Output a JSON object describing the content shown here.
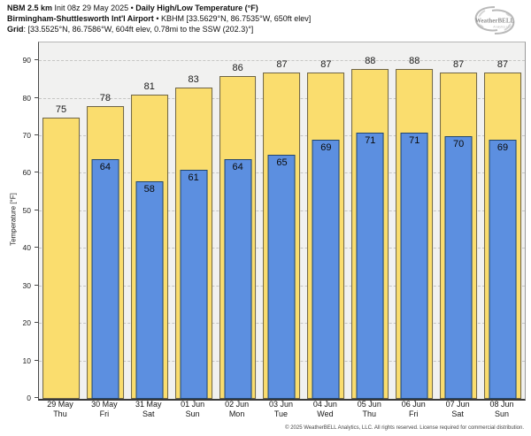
{
  "header": {
    "model": "NBM 2.5 km",
    "init": " Init 08z 29 May 2025 • ",
    "product": "Daily High/Low Temperature (°F)",
    "station": "Birmingham-Shuttlesworth Int'l Airport",
    "station_meta": " • KBHM [33.5629°N, 86.7535°W, 650ft elev]",
    "grid_label": "Grid",
    "grid_meta": ": [33.5525°N, 86.7586°W, 604ft elev, 0.78mi to the SSW (202.3)°]"
  },
  "logo": {
    "brand": "WeatherBELL",
    "sub": "Analytics LLC"
  },
  "footer": {
    "copyright": "© 2025 WeatherBELL Analytics, LLC. All rights reserved. License required for commercial distribution."
  },
  "chart_data": {
    "type": "bar",
    "title": "Daily High/Low Temperature (°F)",
    "xlabel": "",
    "ylabel": "Temperature [°F]",
    "ylim": [
      0,
      95
    ],
    "yticks": [
      0,
      10,
      20,
      30,
      40,
      50,
      60,
      70,
      80,
      90
    ],
    "grid": "horizontal-dashed",
    "legend_position": "none",
    "categories": [
      {
        "date": "29 May",
        "day": "Thu"
      },
      {
        "date": "30 May",
        "day": "Fri"
      },
      {
        "date": "31 May",
        "day": "Sat"
      },
      {
        "date": "01 Jun",
        "day": "Sun"
      },
      {
        "date": "02 Jun",
        "day": "Mon"
      },
      {
        "date": "03 Jun",
        "day": "Tue"
      },
      {
        "date": "04 Jun",
        "day": "Wed"
      },
      {
        "date": "05 Jun",
        "day": "Thu"
      },
      {
        "date": "06 Jun",
        "day": "Fri"
      },
      {
        "date": "07 Jun",
        "day": "Sat"
      },
      {
        "date": "08 Jun",
        "day": "Sun"
      }
    ],
    "series": [
      {
        "name": "Daily High",
        "color": "#fadd6e",
        "edge": "#6e6447",
        "values": [
          75,
          78,
          81,
          83,
          86,
          87,
          87,
          88,
          88,
          87,
          87
        ]
      },
      {
        "name": "Daily Low",
        "color": "#5c8fe0",
        "edge": "#22466e",
        "values": [
          null,
          64,
          58,
          61,
          64,
          65,
          69,
          71,
          71,
          70,
          69
        ]
      }
    ],
    "plot_background": "#f1f1f0"
  }
}
